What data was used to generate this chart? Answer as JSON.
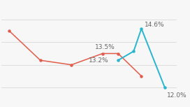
{
  "red_x": [
    1999,
    2003,
    2007,
    2011,
    2013,
    2016
  ],
  "red_y": [
    14.5,
    13.2,
    13.0,
    13.5,
    13.5,
    12.5
  ],
  "blue_x": [
    2013,
    2015,
    2016,
    2019
  ],
  "blue_y": [
    13.2,
    13.6,
    14.6,
    12.0
  ],
  "red_color": "#e05c4b",
  "blue_color": "#29b5ce",
  "label_fontsize": 6.5,
  "label_color": "#666666",
  "background_color": "#f7f7f7",
  "grid_color": "#dddddd",
  "ylim": [
    11.2,
    15.8
  ],
  "xlim": [
    1998,
    2020.5
  ]
}
